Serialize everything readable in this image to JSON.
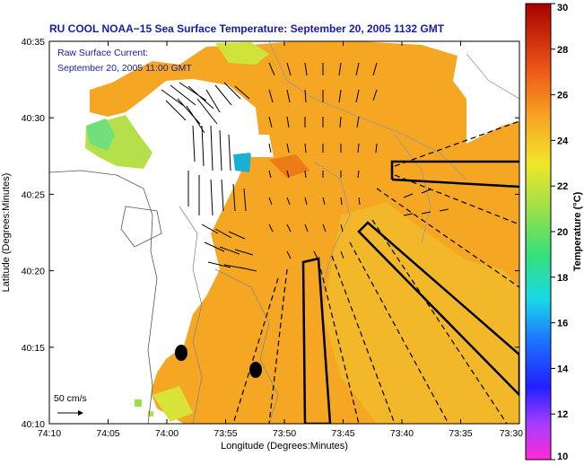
{
  "title": "RU COOL  NOAA−15  Sea Surface Temperature:  September 20, 2005 1132 GMT",
  "legend": {
    "line1": "Raw Surface Current:",
    "line2": "September 20, 2005 11:00 GMT"
  },
  "scale_label": "50 cm/s",
  "x_axis": {
    "label": "Longitude (Degrees:Minutes)",
    "ticks": [
      "74:10",
      "74:05",
      "74:00",
      "73:55",
      "73:50",
      "73:45",
      "73:40",
      "73:35",
      "73:30"
    ]
  },
  "y_axis": {
    "label": "Latitude (Degrees:Minutes)",
    "ticks": [
      "40:35",
      "40:30",
      "40:25",
      "40:20",
      "40:15",
      "40:10"
    ]
  },
  "colorbar": {
    "label": "Temperature (°C)",
    "ticks": [
      "30",
      "28",
      "26",
      "24",
      "22",
      "20",
      "18",
      "16",
      "14",
      "12",
      "10"
    ],
    "min": 10,
    "max": 30
  },
  "colors": {
    "title": "#1a1aa8",
    "land": "#ffffff",
    "sst_dominant": "#f5a623"
  }
}
